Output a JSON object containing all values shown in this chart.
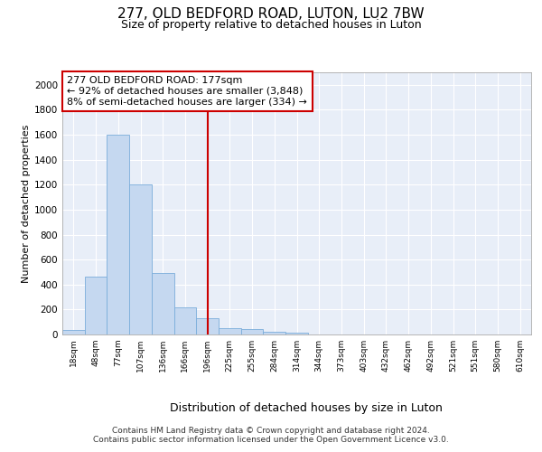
{
  "title1": "277, OLD BEDFORD ROAD, LUTON, LU2 7BW",
  "title2": "Size of property relative to detached houses in Luton",
  "xlabel": "Distribution of detached houses by size in Luton",
  "ylabel": "Number of detached properties",
  "footer1": "Contains HM Land Registry data © Crown copyright and database right 2024.",
  "footer2": "Contains public sector information licensed under the Open Government Licence v3.0.",
  "bins": [
    "18sqm",
    "48sqm",
    "77sqm",
    "107sqm",
    "136sqm",
    "166sqm",
    "196sqm",
    "225sqm",
    "255sqm",
    "284sqm",
    "314sqm",
    "344sqm",
    "373sqm",
    "403sqm",
    "432sqm",
    "462sqm",
    "492sqm",
    "521sqm",
    "551sqm",
    "580sqm",
    "610sqm"
  ],
  "values": [
    35,
    460,
    1600,
    1200,
    490,
    215,
    130,
    50,
    40,
    25,
    15,
    0,
    0,
    0,
    0,
    0,
    0,
    0,
    0,
    0,
    0
  ],
  "bar_color": "#c5d8f0",
  "bar_edge_color": "#7aadda",
  "vline_x": 6.0,
  "vline_color": "#cc0000",
  "annotation_line1": "277 OLD BEDFORD ROAD: 177sqm",
  "annotation_line2": "← 92% of detached houses are smaller (3,848)",
  "annotation_line3": "8% of semi-detached houses are larger (334) →",
  "annotation_box_color": "#cc0000",
  "ylim": [
    0,
    2100
  ],
  "yticks": [
    0,
    200,
    400,
    600,
    800,
    1000,
    1200,
    1400,
    1600,
    1800,
    2000
  ],
  "bg_color": "#e8eef8",
  "title1_fontsize": 11,
  "title2_fontsize": 9,
  "xlabel_fontsize": 9,
  "ylabel_fontsize": 8,
  "footer_fontsize": 6.5
}
